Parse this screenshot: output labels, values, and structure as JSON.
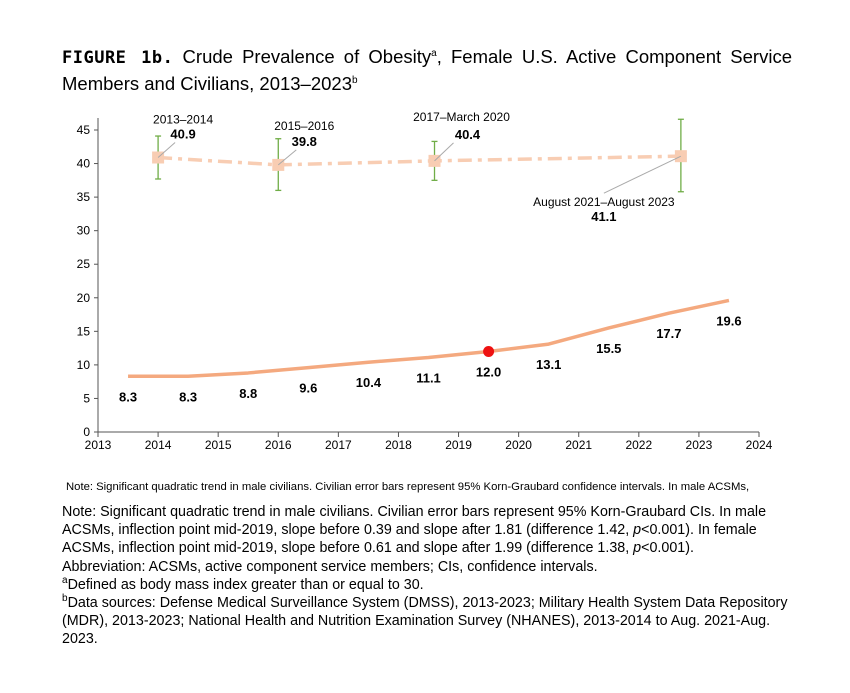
{
  "title": {
    "figure_label": "FIGURE 1b.",
    "text_1": "Crude Prevalence of Obesity",
    "sup_a": "a",
    "text_2": ", Female U.S. Active Component Service Members and Civilians, 2013–2023",
    "sup_b": "b"
  },
  "chart_data": {
    "type": "line",
    "xlim": [
      2013,
      2024
    ],
    "ylim": [
      0,
      45
    ],
    "x_ticks": [
      "2013",
      "2014",
      "2015",
      "2016",
      "2017",
      "2018",
      "2019",
      "2020",
      "2021",
      "2022",
      "2023",
      "2024"
    ],
    "y_ticks": [
      "0",
      "5",
      "10",
      "15",
      "20",
      "25",
      "30",
      "35",
      "40",
      "45"
    ],
    "grid": false,
    "series": [
      {
        "style": "solid",
        "color": "#f4a97f",
        "x": [
          2013.5,
          2014.5,
          2015.5,
          2016.5,
          2017.5,
          2018.5,
          2019.5,
          2020.5,
          2021.5,
          2022.5,
          2023.5
        ],
        "values": [
          8.3,
          8.3,
          8.8,
          9.6,
          10.4,
          11.1,
          12.0,
          13.1,
          15.5,
          17.7,
          19.6
        ],
        "labels": [
          "8.3",
          "8.3",
          "8.8",
          "9.6",
          "10.4",
          "11.1",
          "12.0",
          "13.1",
          "15.5",
          "17.7",
          "19.6"
        ],
        "highlight": {
          "x": 2019.5,
          "value": 12.0,
          "color": "#ee1111"
        }
      },
      {
        "style": "dash-dot",
        "color": "#f8cdb3",
        "marker": "square",
        "x": [
          2014.0,
          2016.0,
          2018.6,
          2022.7
        ],
        "values": [
          40.9,
          39.8,
          40.4,
          41.1
        ],
        "periods": [
          "2013–2014",
          "2015–2016",
          "2017–March 2020",
          "August 2021–August 2023"
        ],
        "labels": [
          "40.9",
          "39.8",
          "40.4",
          "41.1"
        ],
        "ci_low": [
          37.7,
          36.0,
          37.5,
          35.8
        ],
        "ci_high": [
          44.1,
          43.7,
          43.3,
          46.6
        ],
        "error_bar_color": "#70ad47"
      }
    ]
  },
  "note_small": "Note: Significant quadratic trend in male civilians. Civilian error bars represent 95% Korn-Graubard confidence intervals. In male ACSMs,",
  "notes": {
    "note_1": "Note: Significant quadratic trend in male civilians. Civilian error bars represent 95% Korn-Graubard CIs. In male ACSMs, inflection point mid-2019, slope before 0.39 and slope after 1.81 (difference 1.42, ",
    "p1": "p",
    "note_2": "<0.001). In female ACSMs, inflection point mid-2019, slope before 0.61 and slope after 1.99 (difference 1.38, ",
    "p2": "p",
    "note_3": "<0.001).",
    "abbreviation": "Abbreviation: ACSMs, active component service members; CIs, confidence intervals.",
    "footnote_a_mark": "a",
    "footnote_a": "Defined as body mass index greater than or equal to 30.",
    "footnote_b_mark": "b",
    "footnote_b": "Data sources: Defense Medical Surveillance System (DMSS), 2013-2023; Military Health System Data Repository (MDR), 2013-2023; National Health and Nutrition Examination Survey (NHANES), 2013-2014 to Aug. 2021-Aug. 2023."
  }
}
